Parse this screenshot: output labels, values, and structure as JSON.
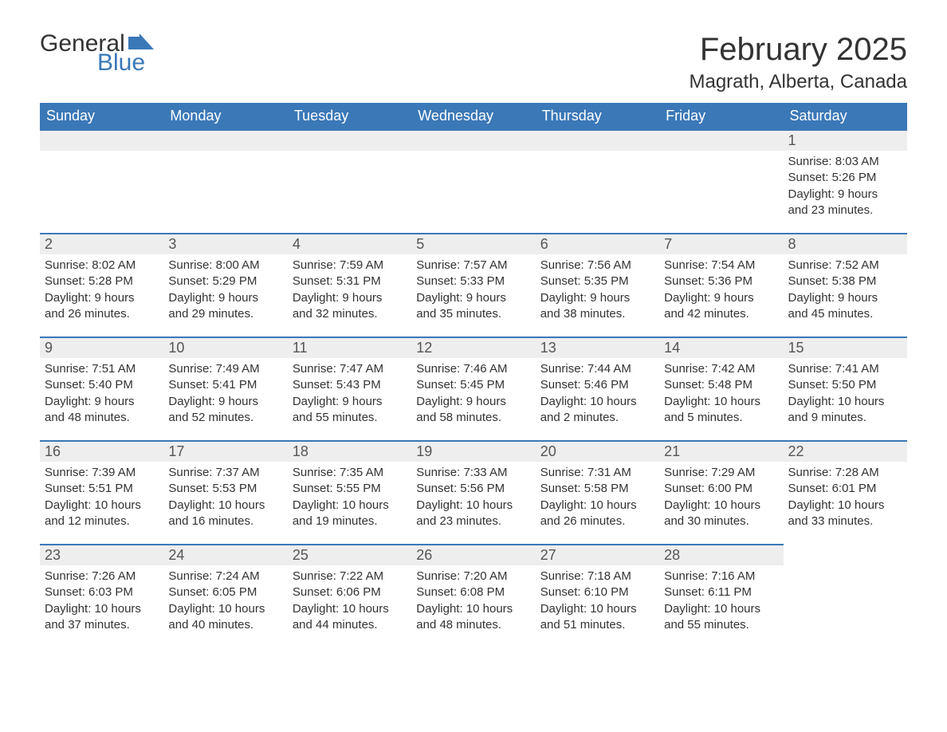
{
  "logo": {
    "word1": "General",
    "word2": "Blue"
  },
  "title": "February 2025",
  "location": "Magrath, Alberta, Canada",
  "colors": {
    "accent": "#3a78b8",
    "header_text": "#ffffff",
    "daynum_bg": "#eeeeee",
    "text": "#333333",
    "background": "#ffffff"
  },
  "day_headers": [
    "Sunday",
    "Monday",
    "Tuesday",
    "Wednesday",
    "Thursday",
    "Friday",
    "Saturday"
  ],
  "weeks": [
    [
      null,
      null,
      null,
      null,
      null,
      null,
      {
        "n": "1",
        "sunrise": "Sunrise: 8:03 AM",
        "sunset": "Sunset: 5:26 PM",
        "dl1": "Daylight: 9 hours",
        "dl2": "and 23 minutes."
      }
    ],
    [
      {
        "n": "2",
        "sunrise": "Sunrise: 8:02 AM",
        "sunset": "Sunset: 5:28 PM",
        "dl1": "Daylight: 9 hours",
        "dl2": "and 26 minutes."
      },
      {
        "n": "3",
        "sunrise": "Sunrise: 8:00 AM",
        "sunset": "Sunset: 5:29 PM",
        "dl1": "Daylight: 9 hours",
        "dl2": "and 29 minutes."
      },
      {
        "n": "4",
        "sunrise": "Sunrise: 7:59 AM",
        "sunset": "Sunset: 5:31 PM",
        "dl1": "Daylight: 9 hours",
        "dl2": "and 32 minutes."
      },
      {
        "n": "5",
        "sunrise": "Sunrise: 7:57 AM",
        "sunset": "Sunset: 5:33 PM",
        "dl1": "Daylight: 9 hours",
        "dl2": "and 35 minutes."
      },
      {
        "n": "6",
        "sunrise": "Sunrise: 7:56 AM",
        "sunset": "Sunset: 5:35 PM",
        "dl1": "Daylight: 9 hours",
        "dl2": "and 38 minutes."
      },
      {
        "n": "7",
        "sunrise": "Sunrise: 7:54 AM",
        "sunset": "Sunset: 5:36 PM",
        "dl1": "Daylight: 9 hours",
        "dl2": "and 42 minutes."
      },
      {
        "n": "8",
        "sunrise": "Sunrise: 7:52 AM",
        "sunset": "Sunset: 5:38 PM",
        "dl1": "Daylight: 9 hours",
        "dl2": "and 45 minutes."
      }
    ],
    [
      {
        "n": "9",
        "sunrise": "Sunrise: 7:51 AM",
        "sunset": "Sunset: 5:40 PM",
        "dl1": "Daylight: 9 hours",
        "dl2": "and 48 minutes."
      },
      {
        "n": "10",
        "sunrise": "Sunrise: 7:49 AM",
        "sunset": "Sunset: 5:41 PM",
        "dl1": "Daylight: 9 hours",
        "dl2": "and 52 minutes."
      },
      {
        "n": "11",
        "sunrise": "Sunrise: 7:47 AM",
        "sunset": "Sunset: 5:43 PM",
        "dl1": "Daylight: 9 hours",
        "dl2": "and 55 minutes."
      },
      {
        "n": "12",
        "sunrise": "Sunrise: 7:46 AM",
        "sunset": "Sunset: 5:45 PM",
        "dl1": "Daylight: 9 hours",
        "dl2": "and 58 minutes."
      },
      {
        "n": "13",
        "sunrise": "Sunrise: 7:44 AM",
        "sunset": "Sunset: 5:46 PM",
        "dl1": "Daylight: 10 hours",
        "dl2": "and 2 minutes."
      },
      {
        "n": "14",
        "sunrise": "Sunrise: 7:42 AM",
        "sunset": "Sunset: 5:48 PM",
        "dl1": "Daylight: 10 hours",
        "dl2": "and 5 minutes."
      },
      {
        "n": "15",
        "sunrise": "Sunrise: 7:41 AM",
        "sunset": "Sunset: 5:50 PM",
        "dl1": "Daylight: 10 hours",
        "dl2": "and 9 minutes."
      }
    ],
    [
      {
        "n": "16",
        "sunrise": "Sunrise: 7:39 AM",
        "sunset": "Sunset: 5:51 PM",
        "dl1": "Daylight: 10 hours",
        "dl2": "and 12 minutes."
      },
      {
        "n": "17",
        "sunrise": "Sunrise: 7:37 AM",
        "sunset": "Sunset: 5:53 PM",
        "dl1": "Daylight: 10 hours",
        "dl2": "and 16 minutes."
      },
      {
        "n": "18",
        "sunrise": "Sunrise: 7:35 AM",
        "sunset": "Sunset: 5:55 PM",
        "dl1": "Daylight: 10 hours",
        "dl2": "and 19 minutes."
      },
      {
        "n": "19",
        "sunrise": "Sunrise: 7:33 AM",
        "sunset": "Sunset: 5:56 PM",
        "dl1": "Daylight: 10 hours",
        "dl2": "and 23 minutes."
      },
      {
        "n": "20",
        "sunrise": "Sunrise: 7:31 AM",
        "sunset": "Sunset: 5:58 PM",
        "dl1": "Daylight: 10 hours",
        "dl2": "and 26 minutes."
      },
      {
        "n": "21",
        "sunrise": "Sunrise: 7:29 AM",
        "sunset": "Sunset: 6:00 PM",
        "dl1": "Daylight: 10 hours",
        "dl2": "and 30 minutes."
      },
      {
        "n": "22",
        "sunrise": "Sunrise: 7:28 AM",
        "sunset": "Sunset: 6:01 PM",
        "dl1": "Daylight: 10 hours",
        "dl2": "and 33 minutes."
      }
    ],
    [
      {
        "n": "23",
        "sunrise": "Sunrise: 7:26 AM",
        "sunset": "Sunset: 6:03 PM",
        "dl1": "Daylight: 10 hours",
        "dl2": "and 37 minutes."
      },
      {
        "n": "24",
        "sunrise": "Sunrise: 7:24 AM",
        "sunset": "Sunset: 6:05 PM",
        "dl1": "Daylight: 10 hours",
        "dl2": "and 40 minutes."
      },
      {
        "n": "25",
        "sunrise": "Sunrise: 7:22 AM",
        "sunset": "Sunset: 6:06 PM",
        "dl1": "Daylight: 10 hours",
        "dl2": "and 44 minutes."
      },
      {
        "n": "26",
        "sunrise": "Sunrise: 7:20 AM",
        "sunset": "Sunset: 6:08 PM",
        "dl1": "Daylight: 10 hours",
        "dl2": "and 48 minutes."
      },
      {
        "n": "27",
        "sunrise": "Sunrise: 7:18 AM",
        "sunset": "Sunset: 6:10 PM",
        "dl1": "Daylight: 10 hours",
        "dl2": "and 51 minutes."
      },
      {
        "n": "28",
        "sunrise": "Sunrise: 7:16 AM",
        "sunset": "Sunset: 6:11 PM",
        "dl1": "Daylight: 10 hours",
        "dl2": "and 55 minutes."
      },
      null
    ]
  ]
}
